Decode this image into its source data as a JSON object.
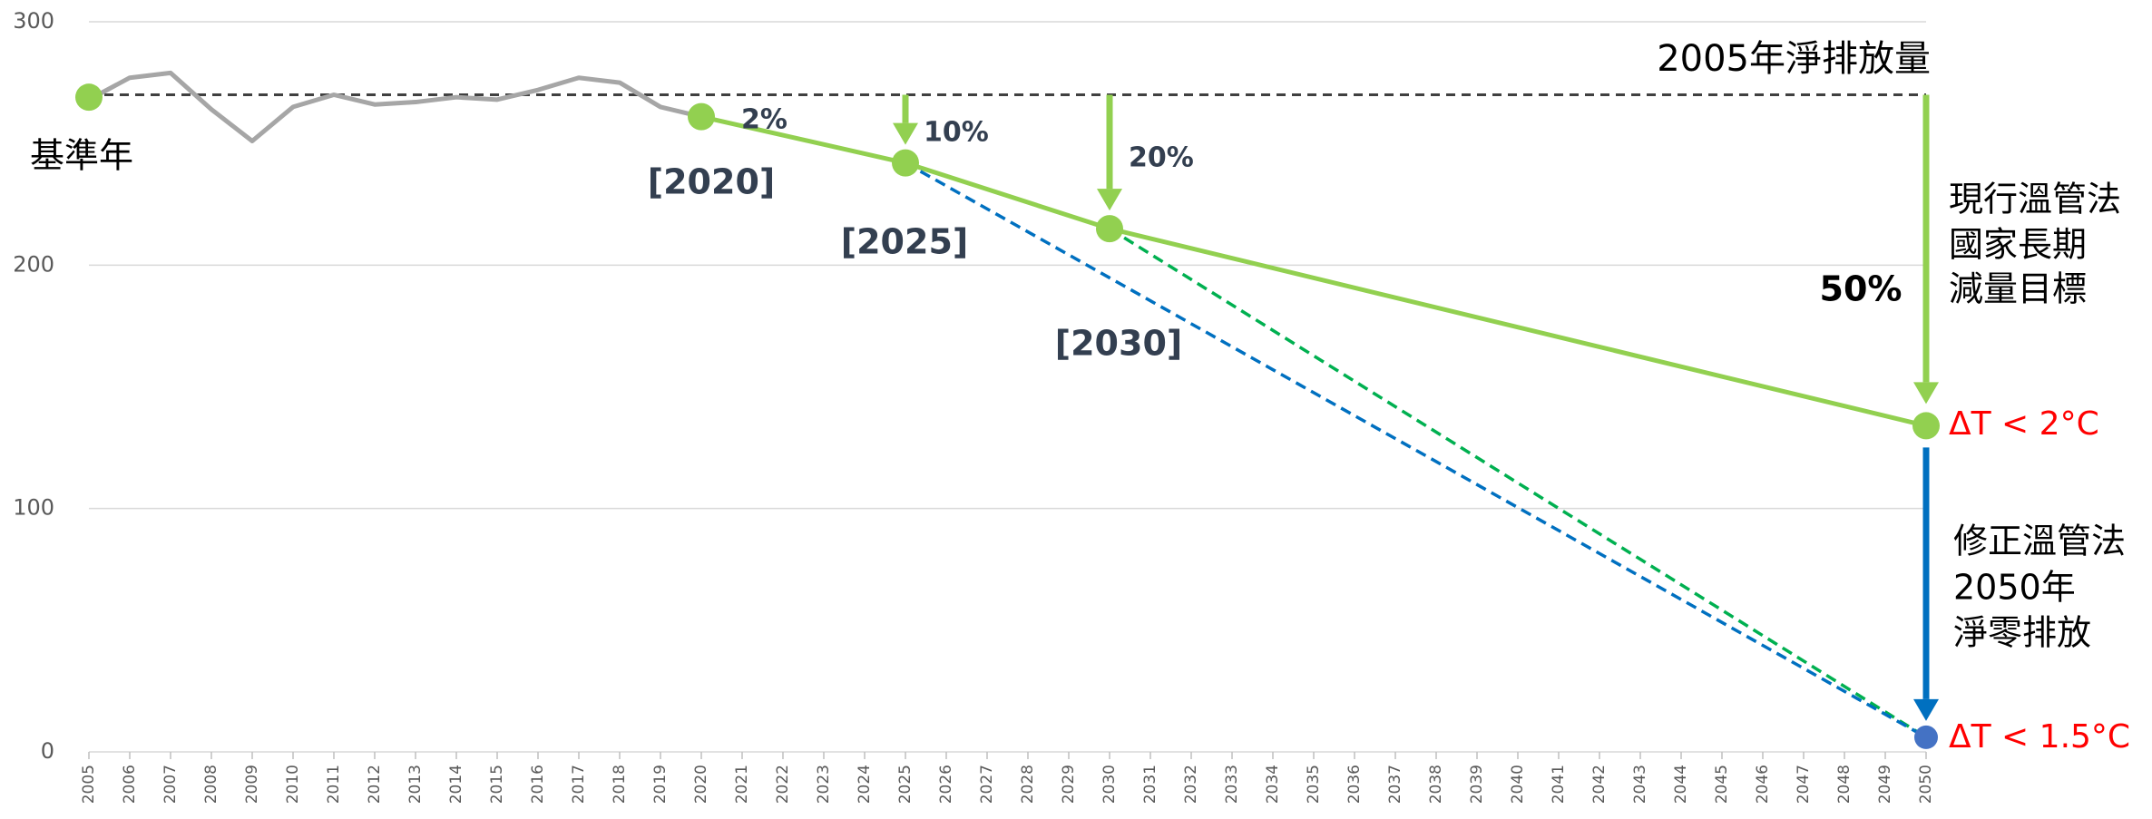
{
  "chart_data": {
    "type": "line",
    "xlim": [
      2005,
      2050
    ],
    "xticks": [
      2005,
      2006,
      2007,
      2008,
      2009,
      2010,
      2011,
      2012,
      2013,
      2014,
      2015,
      2016,
      2017,
      2018,
      2019,
      2020,
      2021,
      2022,
      2023,
      2024,
      2025,
      2026,
      2027,
      2028,
      2029,
      2030,
      2031,
      2032,
      2033,
      2034,
      2035,
      2036,
      2037,
      2038,
      2039,
      2040,
      2041,
      2042,
      2043,
      2044,
      2045,
      2046,
      2047,
      2048,
      2049,
      2050
    ],
    "ylim": [
      0,
      300
    ],
    "yticks": [
      0,
      100,
      200,
      300
    ],
    "grid": true,
    "reference_line": {
      "value": 270,
      "label": "2005年淨排放量",
      "color": "#404040",
      "dash": true
    },
    "series": [
      {
        "color": "#a6a6a6",
        "dash": false,
        "markers": false,
        "x": [
          2005,
          2006,
          2007,
          2008,
          2009,
          2010,
          2011,
          2012,
          2013,
          2014,
          2015,
          2016,
          2017,
          2018,
          2019,
          2020
        ],
        "values": [
          268,
          277,
          279,
          264,
          251,
          265,
          270,
          266,
          267,
          269,
          268,
          272,
          277,
          275,
          265,
          261
        ]
      },
      {
        "color": "#92d050",
        "dash": false,
        "markers": true,
        "x": [
          2020,
          2025,
          2030,
          2050
        ],
        "values": [
          261,
          242,
          215,
          134
        ]
      },
      {
        "color": "#00b050",
        "dash": true,
        "markers": false,
        "x": [
          2030,
          2050
        ],
        "values": [
          215,
          6
        ]
      },
      {
        "color": "#0070c0",
        "dash": true,
        "markers": false,
        "x": [
          2025,
          2050
        ],
        "values": [
          242,
          6
        ]
      },
      {
        "color": "#92d050",
        "dash": false,
        "markers": true,
        "x": [
          2005
        ],
        "values": [
          269
        ]
      },
      {
        "color": "#4472c4",
        "dash": false,
        "markers": true,
        "x": [
          2050
        ],
        "values": [
          6
        ]
      }
    ],
    "annotations": [
      {
        "text": "基準年",
        "color": "#000000"
      },
      {
        "text": "2%",
        "color": "#333f50"
      },
      {
        "text": "10%",
        "color": "#333f50"
      },
      {
        "text": "20%",
        "color": "#333f50"
      },
      {
        "text": "[2020]",
        "color": "#333f50"
      },
      {
        "text": "[2025]",
        "color": "#333f50"
      },
      {
        "text": "[2030]",
        "color": "#333f50"
      },
      {
        "text": "50%",
        "color": "#000000"
      },
      {
        "text": "現行溫管法",
        "color": "#000000"
      },
      {
        "text": "國家長期",
        "color": "#000000"
      },
      {
        "text": "減量目標",
        "color": "#000000"
      },
      {
        "text": "ΔT < 2°C",
        "color": "#ff0000"
      },
      {
        "text": "修正溫管法",
        "color": "#000000"
      },
      {
        "text": "2050年",
        "color": "#000000"
      },
      {
        "text": "淨零排放",
        "color": "#000000"
      },
      {
        "text": "ΔT < 1.5°C",
        "color": "#ff0000"
      }
    ]
  }
}
